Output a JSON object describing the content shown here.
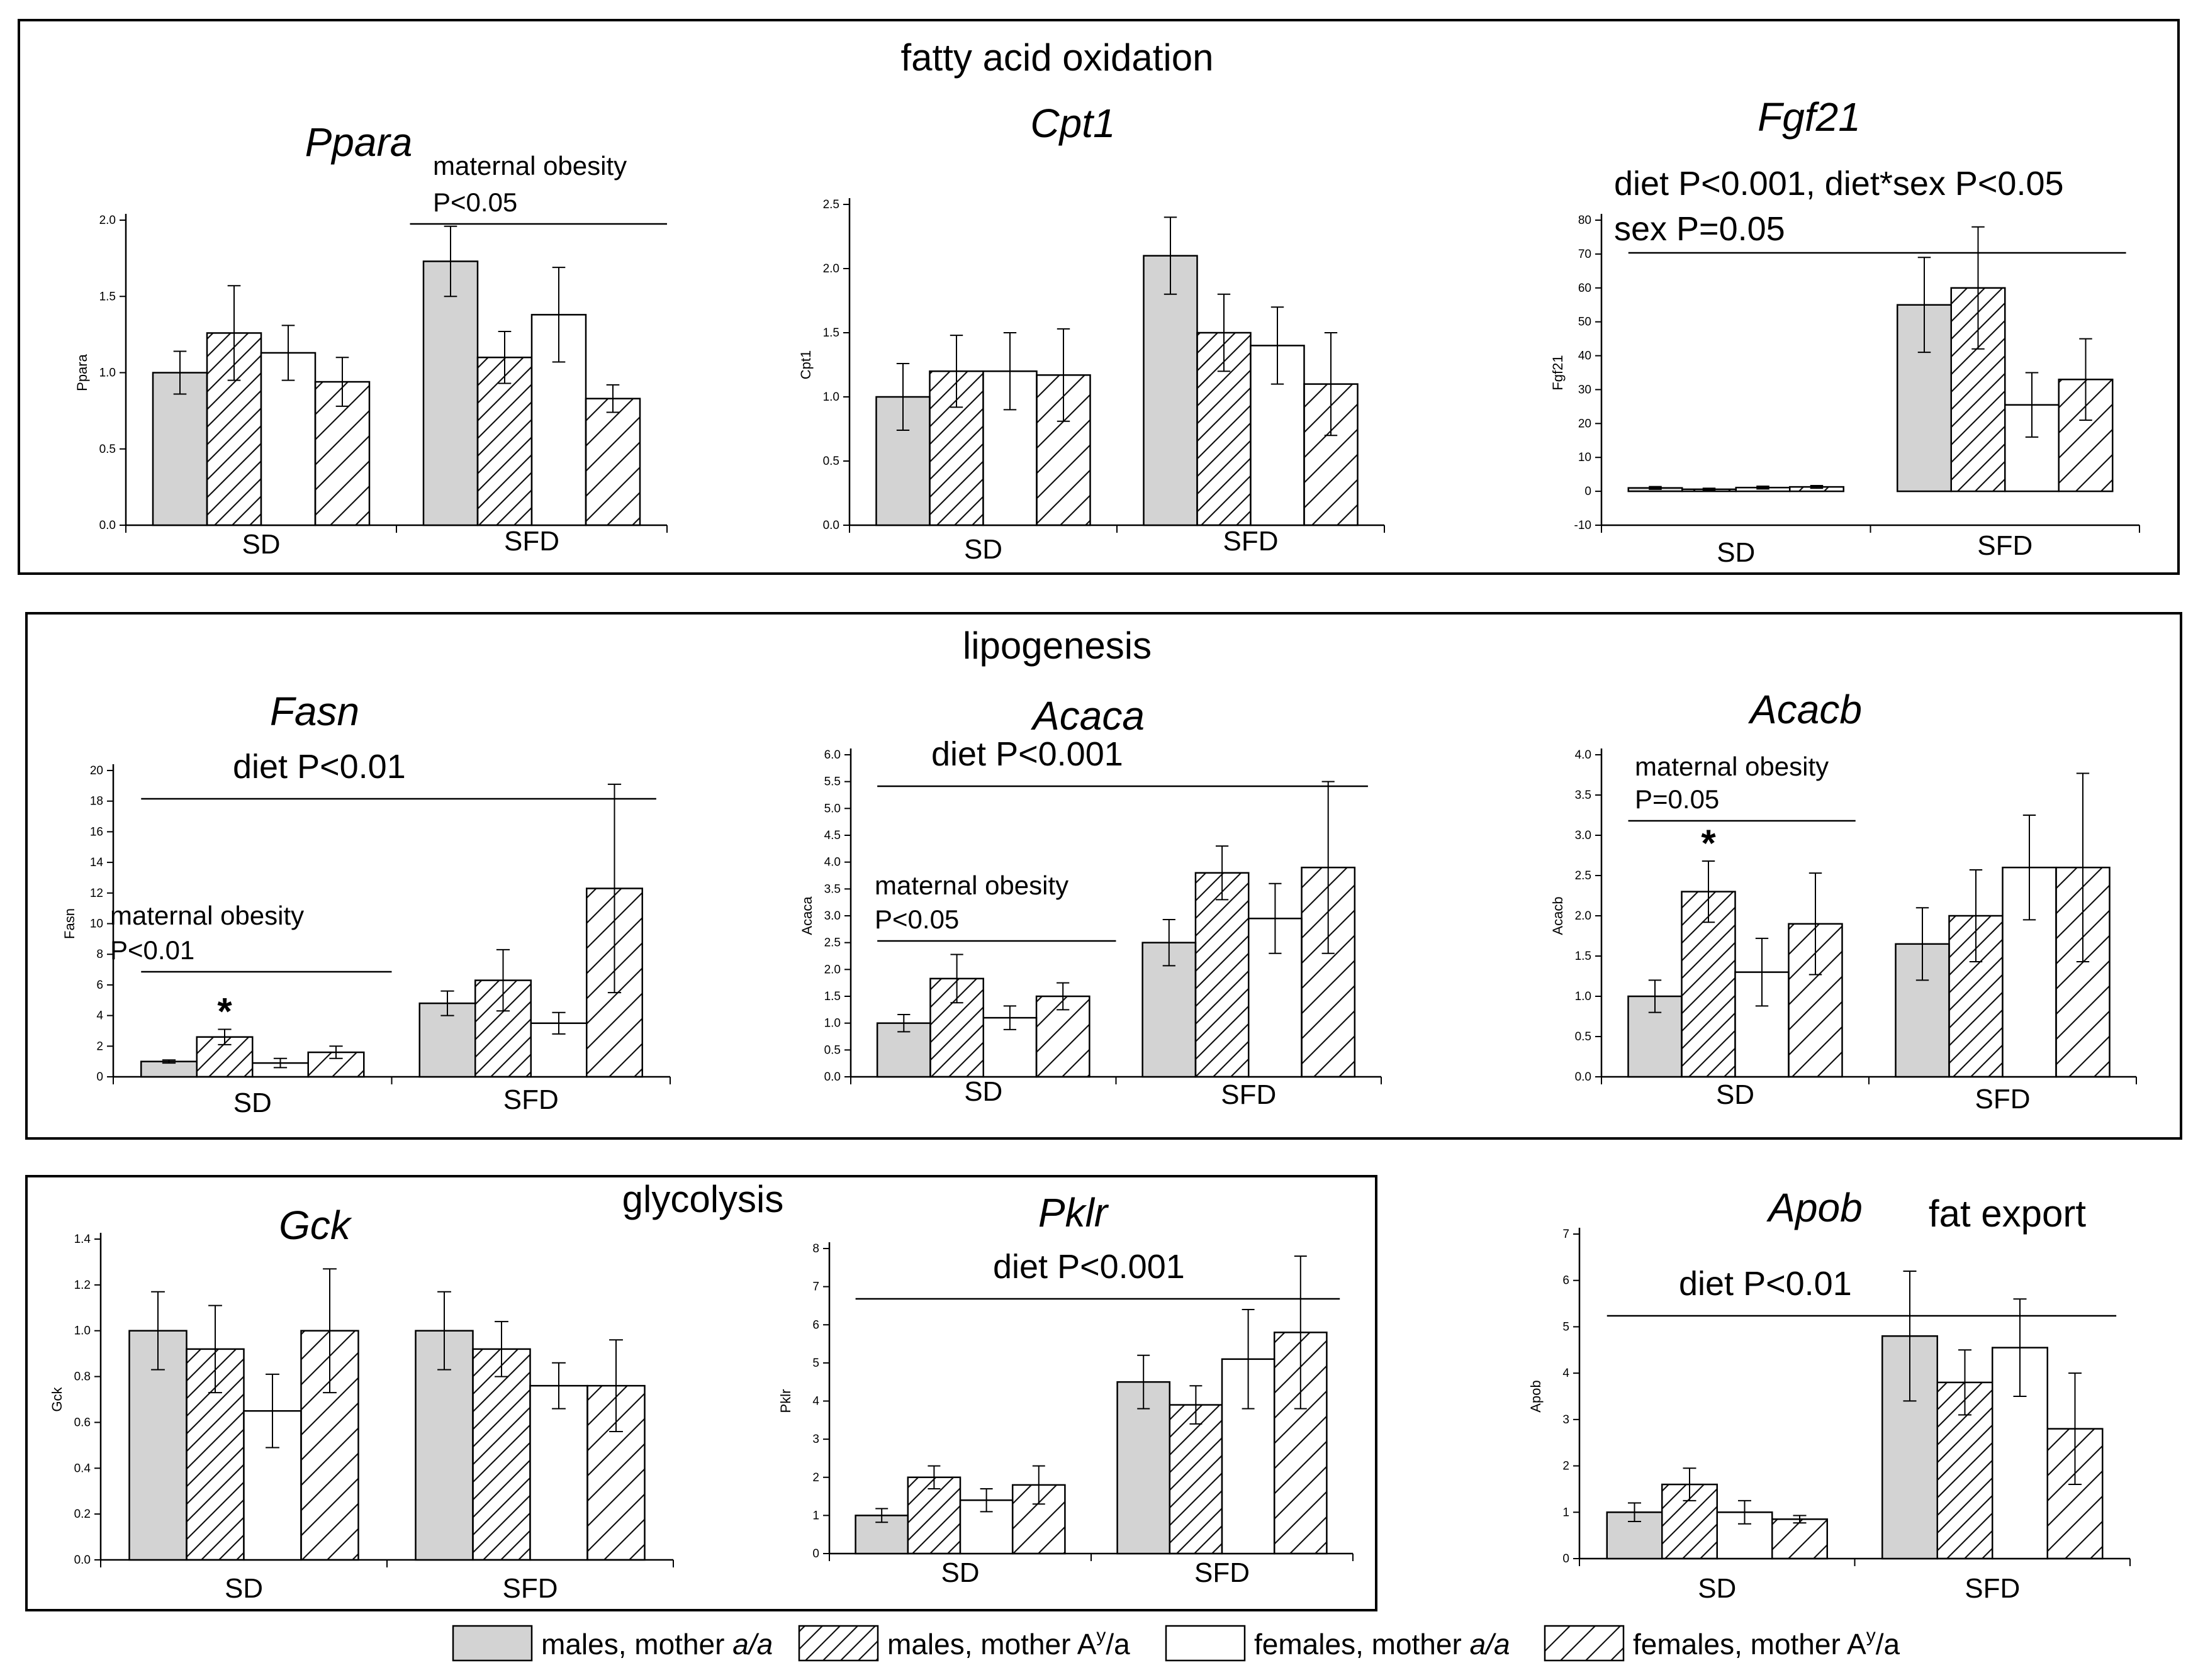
{
  "sections": {
    "fatty_acid_oxidation": "fatty acid oxidation",
    "lipogenesis": "lipogenesis",
    "glycolysis": "glycolysis",
    "fat_export": "fat export"
  },
  "legend": [
    {
      "key": "males_aa",
      "text": "males, mother ",
      "italic": "a/a",
      "sup": ""
    },
    {
      "key": "males_Aya",
      "text": "males, mother ",
      "italic": "",
      "sup": "A|y|/a"
    },
    {
      "key": "females_aa",
      "text": "females, mother ",
      "italic": "a/a",
      "sup": ""
    },
    {
      "key": "females_Aya",
      "text": "females, mother ",
      "italic": "",
      "sup": "A|y|/a"
    }
  ],
  "series_names": [
    "males, mother a/a",
    "males, mother Ay/a",
    "females, mother a/a",
    "females, mother Ay/a"
  ],
  "chart_data": [
    {
      "type": "bar",
      "id": "ppara",
      "title": "Ppara",
      "ylabel": "Ppara",
      "categories": [
        "SD",
        "SFD"
      ],
      "ylim": [
        0,
        2.0
      ],
      "ticks": [
        "0.0",
        "0.5",
        "1.0",
        "1.5",
        "2.0"
      ],
      "series": [
        {
          "name": "males, mother a/a",
          "values": [
            1.0,
            1.73
          ],
          "errors": [
            0.14,
            0.23
          ]
        },
        {
          "name": "males, mother Ay/a",
          "values": [
            1.26,
            1.1
          ],
          "errors": [
            0.31,
            0.17
          ]
        },
        {
          "name": "females, mother a/a",
          "values": [
            1.13,
            1.38
          ],
          "errors": [
            0.18,
            0.31
          ]
        },
        {
          "name": "females, mother Ay/a",
          "values": [
            0.94,
            0.83
          ],
          "errors": [
            0.16,
            0.09
          ]
        }
      ],
      "annotations": [
        {
          "lines": [
            "maternal obesity",
            "P<0.05"
          ],
          "span": [
            1.05,
            2.0
          ]
        }
      ]
    },
    {
      "type": "bar",
      "id": "cpt1",
      "title": "Cpt1",
      "ylabel": "Cpt1",
      "categories": [
        "SD",
        "SFD"
      ],
      "ylim": [
        0,
        2.5
      ],
      "ticks": [
        "0.0",
        "0.5",
        "1.0",
        "1.5",
        "2.0",
        "2.5"
      ],
      "series": [
        {
          "name": "males, mother a/a",
          "values": [
            1.0,
            2.1
          ],
          "errors": [
            0.26,
            0.3
          ]
        },
        {
          "name": "males, mother Ay/a",
          "values": [
            1.2,
            1.5
          ],
          "errors": [
            0.28,
            0.3
          ]
        },
        {
          "name": "females, mother a/a",
          "values": [
            1.2,
            1.4
          ],
          "errors": [
            0.3,
            0.3
          ]
        },
        {
          "name": "females, mother Ay/a",
          "values": [
            1.17,
            1.1
          ],
          "errors": [
            0.36,
            0.4
          ]
        }
      ],
      "annotations": []
    },
    {
      "type": "bar",
      "id": "fgf21",
      "title": "Fgf21",
      "ylabel": "Fgf21",
      "categories": [
        "SD",
        "SFD"
      ],
      "ylim": [
        -10,
        80
      ],
      "ticks": [
        "-10",
        "0",
        "10",
        "20",
        "30",
        "40",
        "50",
        "60",
        "70",
        "80"
      ],
      "series": [
        {
          "name": "males, mother a/a",
          "values": [
            1.0,
            55
          ],
          "errors": [
            0.4,
            14
          ]
        },
        {
          "name": "males, mother Ay/a",
          "values": [
            0.6,
            60
          ],
          "errors": [
            0.3,
            18
          ]
        },
        {
          "name": "females, mother a/a",
          "values": [
            1.1,
            25.5
          ],
          "errors": [
            0.4,
            9.5
          ]
        },
        {
          "name": "females, mother Ay/a",
          "values": [
            1.3,
            33
          ],
          "errors": [
            0.4,
            12
          ]
        }
      ],
      "annotations": [
        {
          "lines": [
            "diet P<0.001, diet*sex P<0.05",
            "sex P=0.05"
          ],
          "span": [
            0.1,
            1.95
          ]
        }
      ]
    },
    {
      "type": "bar",
      "id": "fasn",
      "title": "Fasn",
      "ylabel": "Fasn",
      "categories": [
        "SD",
        "SFD"
      ],
      "ylim": [
        0,
        20
      ],
      "ticks": [
        "0",
        "2",
        "4",
        "6",
        "8",
        "10",
        "12",
        "14",
        "16",
        "18",
        "20"
      ],
      "series": [
        {
          "name": "males, mother a/a",
          "values": [
            1.0,
            4.8
          ],
          "errors": [
            0.1,
            0.8
          ]
        },
        {
          "name": "males, mother Ay/a",
          "values": [
            2.6,
            6.3
          ],
          "errors": [
            0.5,
            2.0
          ]
        },
        {
          "name": "females, mother a/a",
          "values": [
            0.9,
            3.5
          ],
          "errors": [
            0.3,
            0.7
          ]
        },
        {
          "name": "females, mother Ay/a",
          "values": [
            1.6,
            12.3
          ],
          "errors": [
            0.4,
            6.8
          ]
        }
      ],
      "annotations": [
        {
          "lines": [
            "diet P<0.01"
          ],
          "span": [
            0.1,
            1.95
          ]
        },
        {
          "lines": [
            "maternal obesity",
            "P<0.01"
          ],
          "span": [
            0.1,
            1.0
          ]
        }
      ],
      "stars": [
        {
          "group": 0,
          "series": 1
        }
      ]
    },
    {
      "type": "bar",
      "id": "acaca",
      "title": "Acaca",
      "ylabel": "Acaca",
      "categories": [
        "SD",
        "SFD"
      ],
      "ylim": [
        0,
        6.0
      ],
      "ticks": [
        "0.0",
        "0.5",
        "1.0",
        "1.5",
        "2.0",
        "2.5",
        "3.0",
        "3.5",
        "4.0",
        "4.5",
        "5.0",
        "5.5",
        "6.0"
      ],
      "series": [
        {
          "name": "males, mother a/a",
          "values": [
            1.0,
            2.5
          ],
          "errors": [
            0.16,
            0.43
          ]
        },
        {
          "name": "males, mother Ay/a",
          "values": [
            1.83,
            3.8
          ],
          "errors": [
            0.45,
            0.5
          ]
        },
        {
          "name": "females, mother a/a",
          "values": [
            1.1,
            2.95
          ],
          "errors": [
            0.22,
            0.65
          ]
        },
        {
          "name": "females, mother Ay/a",
          "values": [
            1.5,
            3.9
          ],
          "errors": [
            0.25,
            1.6
          ]
        }
      ],
      "annotations": [
        {
          "lines": [
            "diet P<0.001"
          ],
          "span": [
            0.1,
            1.95
          ]
        },
        {
          "lines": [
            "maternal obesity",
            "P<0.05"
          ],
          "span": [
            0.1,
            1.0
          ]
        }
      ]
    },
    {
      "type": "bar",
      "id": "acacb",
      "title": "Acacb",
      "ylabel": "Acacb",
      "categories": [
        "SD",
        "SFD"
      ],
      "ylim": [
        0,
        4.0
      ],
      "ticks": [
        "0.0",
        "0.5",
        "1.0",
        "1.5",
        "2.0",
        "2.5",
        "3.0",
        "3.5",
        "4.0"
      ],
      "series": [
        {
          "name": "males, mother a/a",
          "values": [
            1.0,
            1.65
          ],
          "errors": [
            0.2,
            0.45
          ]
        },
        {
          "name": "males, mother Ay/a",
          "values": [
            2.3,
            2.0
          ],
          "errors": [
            0.38,
            0.57
          ]
        },
        {
          "name": "females, mother a/a",
          "values": [
            1.3,
            2.6
          ],
          "errors": [
            0.42,
            0.65
          ]
        },
        {
          "name": "females, mother Ay/a",
          "values": [
            1.9,
            2.6
          ],
          "errors": [
            0.63,
            1.17
          ]
        }
      ],
      "annotations": [
        {
          "lines": [
            "maternal obesity",
            "P=0.05"
          ],
          "span": [
            0.1,
            0.95
          ]
        }
      ],
      "stars": [
        {
          "group": 0,
          "series": 1
        }
      ]
    },
    {
      "type": "bar",
      "id": "gck",
      "title": "Gck",
      "ylabel": "Gck",
      "categories": [
        "SD",
        "SFD"
      ],
      "ylim": [
        0,
        1.4
      ],
      "ticks": [
        "0.0",
        "0.2",
        "0.4",
        "0.6",
        "0.8",
        "1.0",
        "1.2",
        "1.4"
      ],
      "series": [
        {
          "name": "males, mother a/a",
          "values": [
            1.0,
            1.0
          ],
          "errors": [
            0.17,
            0.17
          ]
        },
        {
          "name": "males, mother Ay/a",
          "values": [
            0.92,
            0.92
          ],
          "errors": [
            0.19,
            0.12
          ]
        },
        {
          "name": "females, mother a/a",
          "values": [
            0.65,
            0.76
          ],
          "errors": [
            0.16,
            0.1
          ]
        },
        {
          "name": "females, mother Ay/a",
          "values": [
            1.0,
            0.76
          ],
          "errors": [
            0.27,
            0.2
          ]
        }
      ],
      "annotations": []
    },
    {
      "type": "bar",
      "id": "pklr",
      "title": "Pklr",
      "ylabel": "Pklr",
      "categories": [
        "SD",
        "SFD"
      ],
      "ylim": [
        0,
        8
      ],
      "ticks": [
        "0",
        "1",
        "2",
        "3",
        "4",
        "5",
        "6",
        "7",
        "8"
      ],
      "series": [
        {
          "name": "males, mother a/a",
          "values": [
            1.0,
            4.5
          ],
          "errors": [
            0.18,
            0.7
          ]
        },
        {
          "name": "males, mother Ay/a",
          "values": [
            2.0,
            3.9
          ],
          "errors": [
            0.3,
            0.5
          ]
        },
        {
          "name": "females, mother a/a",
          "values": [
            1.4,
            5.1
          ],
          "errors": [
            0.3,
            1.3
          ]
        },
        {
          "name": "females, mother Ay/a",
          "values": [
            1.8,
            5.8
          ],
          "errors": [
            0.5,
            2.0
          ]
        }
      ],
      "annotations": [
        {
          "lines": [
            "diet P<0.001"
          ],
          "span": [
            0.1,
            1.95
          ]
        }
      ]
    },
    {
      "type": "bar",
      "id": "apob",
      "title": "Apob",
      "ylabel": "Apob",
      "categories": [
        "SD",
        "SFD"
      ],
      "ylim": [
        0,
        7
      ],
      "ticks": [
        "0",
        "1",
        "2",
        "3",
        "4",
        "5",
        "6",
        "7"
      ],
      "series": [
        {
          "name": "males, mother a/a",
          "values": [
            1.0,
            4.8
          ],
          "errors": [
            0.2,
            1.4
          ]
        },
        {
          "name": "males, mother Ay/a",
          "values": [
            1.6,
            3.8
          ],
          "errors": [
            0.35,
            0.7
          ]
        },
        {
          "name": "females, mother a/a",
          "values": [
            1.0,
            4.55
          ],
          "errors": [
            0.25,
            1.05
          ]
        },
        {
          "name": "females, mother Ay/a",
          "values": [
            0.85,
            2.8
          ],
          "errors": [
            0.08,
            1.2
          ]
        }
      ],
      "annotations": [
        {
          "lines": [
            "diet P<0.01"
          ],
          "span": [
            0.1,
            1.95
          ]
        }
      ]
    }
  ]
}
